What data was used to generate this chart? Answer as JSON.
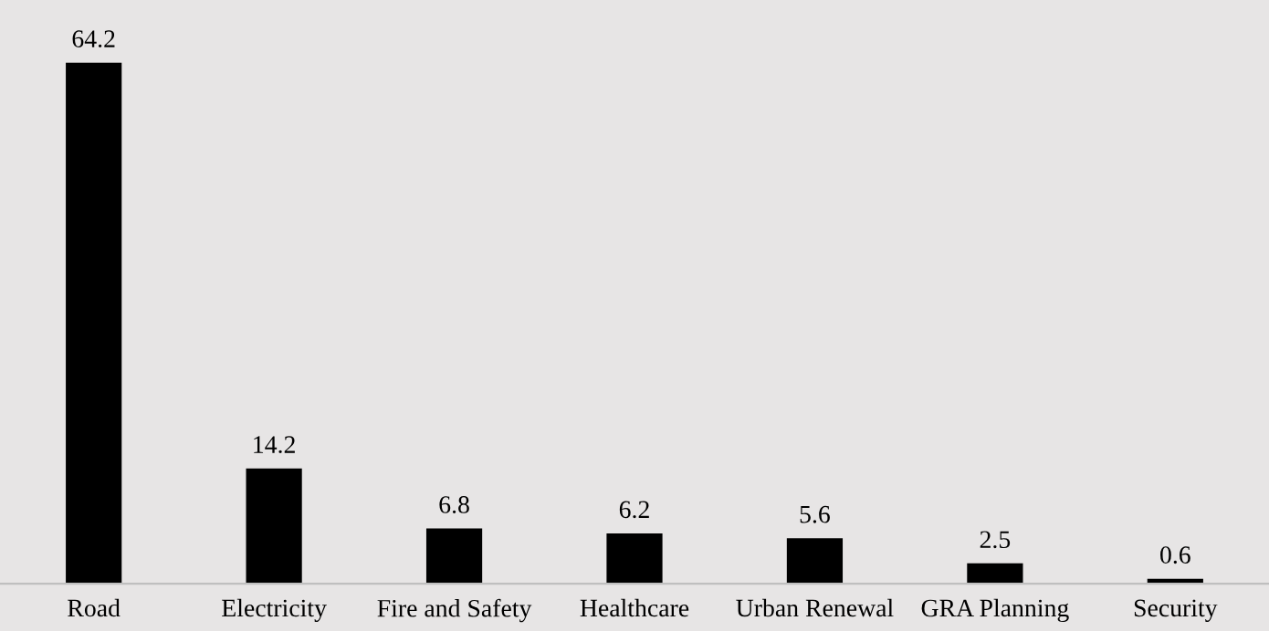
{
  "chart_data": {
    "type": "bar",
    "categories": [
      "Road",
      "Electricity",
      "Fire and Safety",
      "Healthcare",
      "Urban Renewal",
      "GRA Planning",
      "Security"
    ],
    "values": [
      64.2,
      14.2,
      6.8,
      6.2,
      5.6,
      2.5,
      0.6
    ],
    "color": "#000000",
    "data_labels": true,
    "grid": false,
    "legend": false
  }
}
